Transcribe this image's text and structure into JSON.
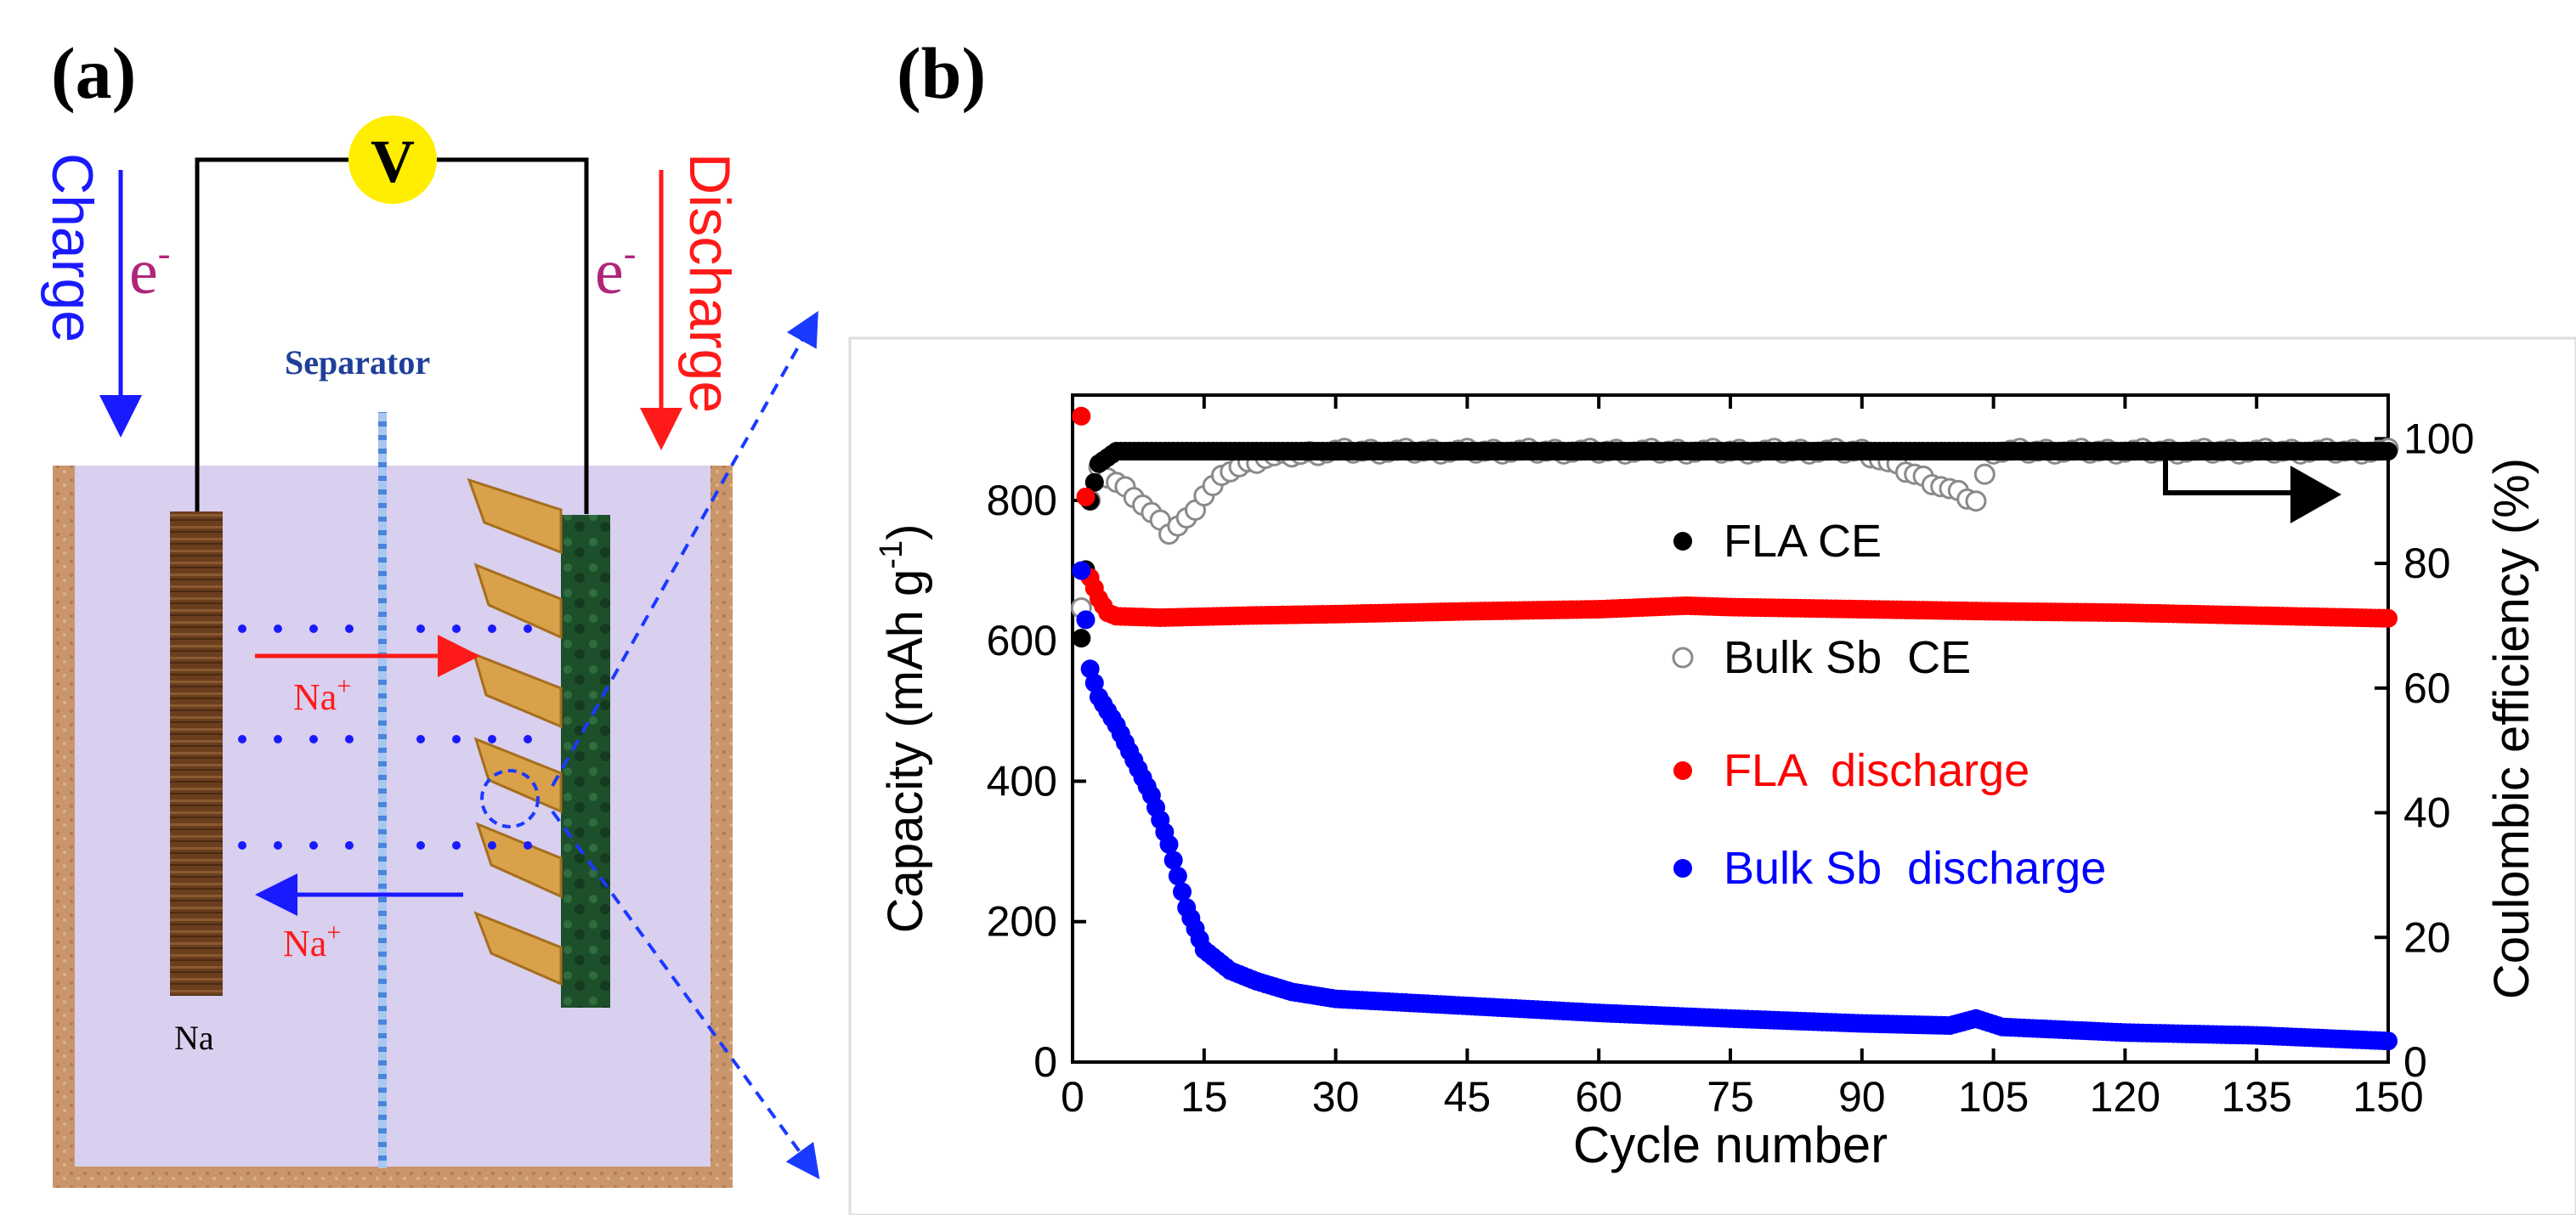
{
  "panel_a": {
    "label": "(a)",
    "voltmeter": "V",
    "charge": "Charge",
    "discharge": "Discharge",
    "electron": "e",
    "electron_sup": "-",
    "separator": "Separator",
    "na_ion": "Na",
    "na_ion_sup": "+",
    "na_electrode": "Na",
    "colors": {
      "charge": "#1a1aff",
      "discharge": "#ff1a1a",
      "electron": "#b0257a",
      "electrolyte": "#d9cfef",
      "container": "#c9956a",
      "anode": "#6b3e1e",
      "cathode": "#1d4f2b",
      "separator": "#4a86d8",
      "voltmeter": "#ffee00"
    }
  },
  "panel_b": {
    "label": "(b)"
  },
  "chart_data": {
    "type": "scatter",
    "xlabel": "Cycle number",
    "ylabel_left": "Capacity (mAh g",
    "ylabel_left_sup": "-1",
    "ylabel_left_end": ")",
    "ylabel_right": "Coulombic efficiency (%)",
    "xlim": [
      0,
      150
    ],
    "ylim_left": [
      0,
      950
    ],
    "ylim_right": [
      0,
      107
    ],
    "xticks": [
      0,
      15,
      30,
      45,
      60,
      75,
      90,
      105,
      120,
      135,
      150
    ],
    "yticks_left": [
      0,
      200,
      400,
      600,
      800
    ],
    "yticks_right": [
      0,
      20,
      40,
      60,
      80,
      100
    ],
    "legend": [
      {
        "label": "FLA CE",
        "marker": "filled",
        "color": "#000000"
      },
      {
        "label": "Bulk Sb  CE",
        "marker": "open",
        "color": "#8a8a8a"
      },
      {
        "label": "FLA  discharge",
        "marker": "filled",
        "color": "#ff0000"
      },
      {
        "label": "Bulk Sb  discharge",
        "marker": "filled",
        "color": "#0000ff"
      }
    ],
    "series": [
      {
        "name": "FLA discharge",
        "axis": "left",
        "color": "#ff0000",
        "points": [
          [
            1,
            920
          ],
          [
            2,
            690
          ],
          [
            3,
            660
          ],
          [
            4,
            640
          ],
          [
            5,
            635
          ],
          [
            10,
            633
          ],
          [
            20,
            636
          ],
          [
            30,
            638
          ],
          [
            45,
            642
          ],
          [
            60,
            645
          ],
          [
            70,
            650
          ],
          [
            75,
            648
          ],
          [
            90,
            645
          ],
          [
            105,
            642
          ],
          [
            120,
            640
          ],
          [
            135,
            636
          ],
          [
            150,
            632
          ]
        ]
      },
      {
        "name": "Bulk Sb discharge",
        "axis": "left",
        "color": "#0000ff",
        "points": [
          [
            1,
            700
          ],
          [
            2,
            560
          ],
          [
            3,
            520
          ],
          [
            5,
            480
          ],
          [
            7,
            430
          ],
          [
            9,
            380
          ],
          [
            11,
            310
          ],
          [
            13,
            220
          ],
          [
            15,
            160
          ],
          [
            18,
            130
          ],
          [
            21,
            115
          ],
          [
            25,
            100
          ],
          [
            30,
            90
          ],
          [
            45,
            80
          ],
          [
            60,
            70
          ],
          [
            75,
            62
          ],
          [
            90,
            55
          ],
          [
            100,
            52
          ],
          [
            103,
            62
          ],
          [
            106,
            50
          ],
          [
            120,
            42
          ],
          [
            135,
            38
          ],
          [
            150,
            30
          ]
        ]
      },
      {
        "name": "FLA CE",
        "axis": "right",
        "color": "#000000",
        "points": [
          [
            1,
            68
          ],
          [
            2,
            90
          ],
          [
            3,
            96
          ],
          [
            5,
            98
          ],
          [
            10,
            98
          ],
          [
            30,
            98
          ],
          [
            60,
            98
          ],
          [
            90,
            98
          ],
          [
            120,
            98
          ],
          [
            150,
            98
          ]
        ]
      },
      {
        "name": "Bulk Sb CE",
        "axis": "right",
        "color": "#8a8a8a",
        "points": [
          [
            1,
            73
          ],
          [
            2,
            90
          ],
          [
            3,
            95
          ],
          [
            5,
            93
          ],
          [
            7,
            91
          ],
          [
            9,
            88
          ],
          [
            11,
            85
          ],
          [
            13,
            87
          ],
          [
            15,
            91
          ],
          [
            18,
            95
          ],
          [
            22,
            97
          ],
          [
            30,
            98
          ],
          [
            60,
            98
          ],
          [
            90,
            98
          ],
          [
            103,
            90
          ],
          [
            105,
            98
          ],
          [
            120,
            98
          ],
          [
            150,
            98
          ]
        ]
      }
    ]
  }
}
